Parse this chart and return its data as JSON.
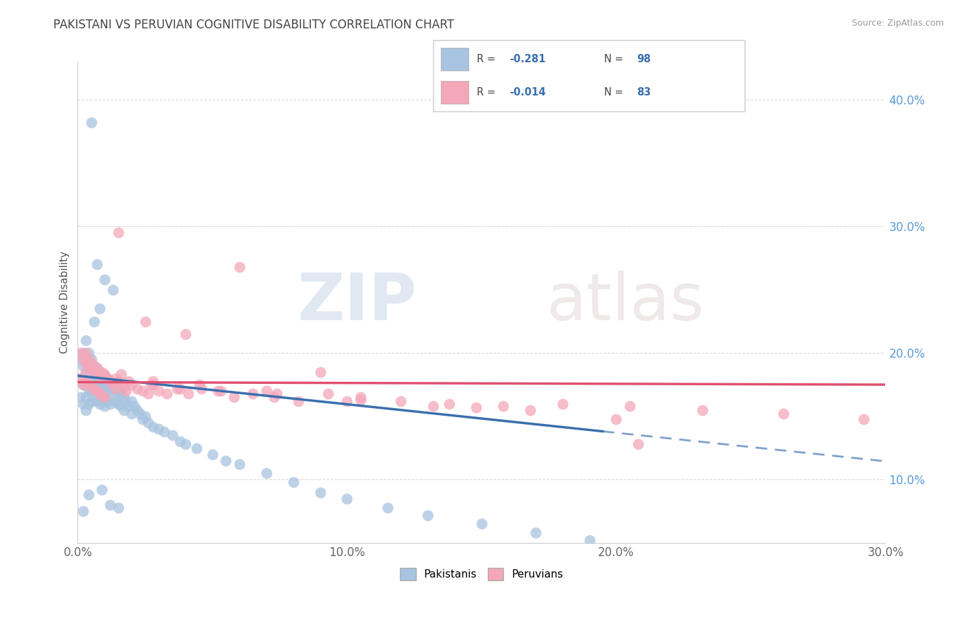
{
  "title": "PAKISTANI VS PERUVIAN COGNITIVE DISABILITY CORRELATION CHART",
  "source_text": "Source: ZipAtlas.com",
  "ylabel": "Cognitive Disability",
  "xlim": [
    0.0,
    0.3
  ],
  "ylim": [
    0.05,
    0.43
  ],
  "xtick_labels": [
    "0.0%",
    "",
    "10.0%",
    "",
    "20.0%",
    "",
    "30.0%"
  ],
  "xtick_values": [
    0.0,
    0.05,
    0.1,
    0.15,
    0.2,
    0.25,
    0.3
  ],
  "ytick_labels_right": [
    "10.0%",
    "20.0%",
    "30.0%",
    "40.0%"
  ],
  "ytick_values_right": [
    0.1,
    0.2,
    0.3,
    0.4
  ],
  "pakistani_color": "#a8c4e0",
  "peruvian_color": "#f4a7b9",
  "pakistani_line_color": "#3a6fad",
  "peruvian_line_color": "#e05070",
  "watermark_zip": "ZIP",
  "watermark_atlas": "atlas",
  "legend_r_pakistani": "-0.281",
  "legend_n_pakistani": "98",
  "legend_r_peruvian": "-0.014",
  "legend_n_peruvian": "83",
  "background_color": "#ffffff",
  "grid_color": "#cccccc",
  "title_color": "#444444",
  "axis_label_color": "#555555",
  "right_axis_color": "#5b9bd5",
  "bottom_axis_color": "#666666",
  "pakistani_scatter_x": [
    0.001,
    0.001,
    0.001,
    0.002,
    0.002,
    0.002,
    0.002,
    0.003,
    0.003,
    0.003,
    0.003,
    0.003,
    0.004,
    0.004,
    0.004,
    0.004,
    0.004,
    0.005,
    0.005,
    0.005,
    0.005,
    0.005,
    0.006,
    0.006,
    0.006,
    0.006,
    0.007,
    0.007,
    0.007,
    0.007,
    0.008,
    0.008,
    0.008,
    0.008,
    0.009,
    0.009,
    0.009,
    0.01,
    0.01,
    0.01,
    0.01,
    0.011,
    0.011,
    0.011,
    0.012,
    0.012,
    0.012,
    0.013,
    0.013,
    0.014,
    0.014,
    0.015,
    0.015,
    0.016,
    0.016,
    0.017,
    0.017,
    0.018,
    0.019,
    0.02,
    0.02,
    0.021,
    0.022,
    0.023,
    0.024,
    0.025,
    0.026,
    0.028,
    0.03,
    0.032,
    0.035,
    0.038,
    0.04,
    0.044,
    0.05,
    0.055,
    0.06,
    0.07,
    0.08,
    0.09,
    0.1,
    0.115,
    0.13,
    0.15,
    0.17,
    0.19,
    0.007,
    0.01,
    0.013,
    0.005,
    0.003,
    0.006,
    0.008,
    0.012,
    0.004,
    0.002,
    0.009,
    0.015
  ],
  "pakistani_scatter_y": [
    0.195,
    0.18,
    0.165,
    0.2,
    0.19,
    0.175,
    0.16,
    0.195,
    0.185,
    0.175,
    0.165,
    0.155,
    0.2,
    0.19,
    0.18,
    0.17,
    0.16,
    0.195,
    0.185,
    0.178,
    0.17,
    0.162,
    0.19,
    0.183,
    0.175,
    0.165,
    0.188,
    0.18,
    0.172,
    0.162,
    0.185,
    0.178,
    0.17,
    0.16,
    0.183,
    0.175,
    0.165,
    0.182,
    0.175,
    0.168,
    0.158,
    0.18,
    0.172,
    0.162,
    0.178,
    0.17,
    0.16,
    0.175,
    0.165,
    0.172,
    0.162,
    0.17,
    0.16,
    0.168,
    0.158,
    0.165,
    0.155,
    0.162,
    0.158,
    0.162,
    0.152,
    0.158,
    0.155,
    0.152,
    0.148,
    0.15,
    0.145,
    0.142,
    0.14,
    0.138,
    0.135,
    0.13,
    0.128,
    0.125,
    0.12,
    0.115,
    0.112,
    0.105,
    0.098,
    0.09,
    0.085,
    0.078,
    0.072,
    0.065,
    0.058,
    0.052,
    0.27,
    0.258,
    0.25,
    0.382,
    0.21,
    0.225,
    0.235,
    0.08,
    0.088,
    0.075,
    0.092,
    0.078
  ],
  "peruvian_scatter_x": [
    0.001,
    0.001,
    0.002,
    0.002,
    0.003,
    0.003,
    0.004,
    0.004,
    0.005,
    0.005,
    0.006,
    0.006,
    0.007,
    0.007,
    0.008,
    0.008,
    0.009,
    0.009,
    0.01,
    0.01,
    0.011,
    0.012,
    0.013,
    0.014,
    0.015,
    0.016,
    0.017,
    0.018,
    0.02,
    0.022,
    0.024,
    0.026,
    0.028,
    0.03,
    0.033,
    0.037,
    0.041,
    0.046,
    0.052,
    0.058,
    0.065,
    0.073,
    0.082,
    0.093,
    0.105,
    0.12,
    0.138,
    0.158,
    0.18,
    0.205,
    0.232,
    0.262,
    0.292,
    0.003,
    0.008,
    0.015,
    0.025,
    0.04,
    0.06,
    0.09,
    0.004,
    0.006,
    0.01,
    0.014,
    0.019,
    0.027,
    0.038,
    0.053,
    0.074,
    0.1,
    0.132,
    0.168,
    0.208,
    0.003,
    0.005,
    0.009,
    0.016,
    0.028,
    0.045,
    0.07,
    0.105,
    0.148,
    0.2
  ],
  "peruvian_scatter_y": [
    0.2,
    0.18,
    0.195,
    0.175,
    0.2,
    0.178,
    0.195,
    0.175,
    0.192,
    0.173,
    0.19,
    0.172,
    0.188,
    0.17,
    0.185,
    0.168,
    0.183,
    0.167,
    0.182,
    0.165,
    0.18,
    0.178,
    0.175,
    0.172,
    0.178,
    0.175,
    0.173,
    0.17,
    0.175,
    0.172,
    0.17,
    0.168,
    0.175,
    0.17,
    0.168,
    0.172,
    0.168,
    0.172,
    0.17,
    0.165,
    0.168,
    0.165,
    0.162,
    0.168,
    0.165,
    0.162,
    0.16,
    0.158,
    0.16,
    0.158,
    0.155,
    0.152,
    0.148,
    0.185,
    0.182,
    0.295,
    0.225,
    0.215,
    0.268,
    0.185,
    0.19,
    0.185,
    0.183,
    0.18,
    0.178,
    0.175,
    0.172,
    0.17,
    0.168,
    0.162,
    0.158,
    0.155,
    0.128,
    0.192,
    0.187,
    0.185,
    0.183,
    0.178,
    0.175,
    0.17,
    0.163,
    0.157,
    0.148
  ]
}
